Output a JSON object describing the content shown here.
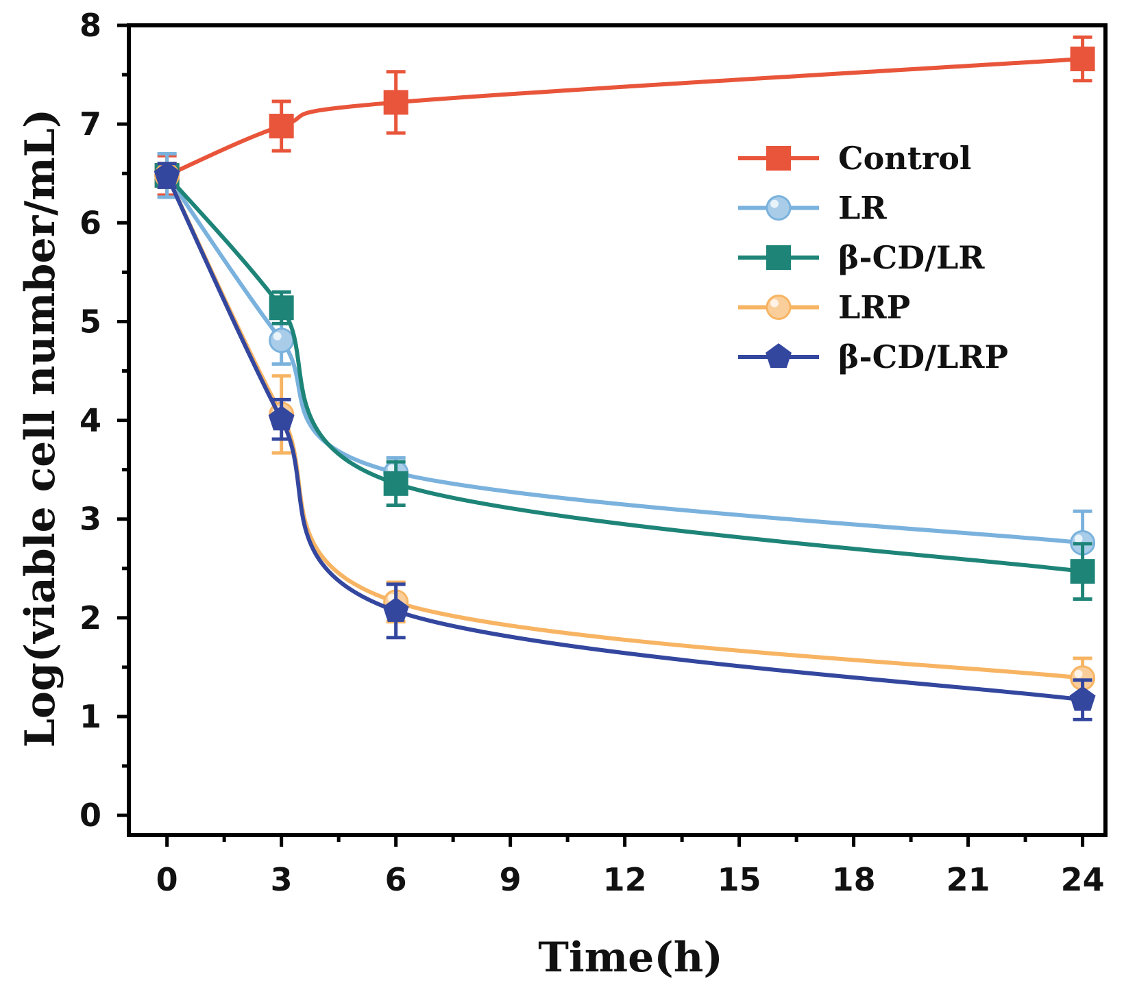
{
  "chart_data": {
    "type": "line",
    "title": "",
    "xlabel": "Time(h)",
    "ylabel": "Log(viable cell number/mL)",
    "x": [
      0,
      3,
      6,
      24
    ],
    "xlim": [
      -1,
      24.6
    ],
    "ylim": [
      -0.2,
      8
    ],
    "xticks": [
      0,
      3,
      6,
      9,
      12,
      15,
      18,
      21,
      24
    ],
    "yticks": [
      0,
      1,
      2,
      3,
      4,
      5,
      6,
      7,
      8
    ],
    "xtick_labels": [
      "0",
      "3",
      "6",
      "9",
      "12",
      "15",
      "18",
      "21",
      "24"
    ],
    "ytick_labels": [
      "0",
      "1",
      "2",
      "3",
      "4",
      "5",
      "6",
      "7",
      "8"
    ],
    "legend_position": "upper-right",
    "series": [
      {
        "name": "Control",
        "color": "#e8553a",
        "marker": "square",
        "values": [
          6.48,
          6.98,
          7.22,
          7.66
        ],
        "errors": [
          0.2,
          0.25,
          0.31,
          0.22
        ]
      },
      {
        "name": "LR",
        "color": "#7ab2dd",
        "marker": "circle",
        "values": [
          6.48,
          4.81,
          3.47,
          2.76
        ],
        "errors": [
          0.22,
          0.24,
          0.15,
          0.32
        ]
      },
      {
        "name": "β-CD/LR",
        "color": "#1e8478",
        "marker": "square",
        "values": [
          6.48,
          5.14,
          3.36,
          2.47
        ],
        "errors": [
          0.12,
          0.16,
          0.22,
          0.28
        ]
      },
      {
        "name": "LRP",
        "color": "#f7b463",
        "marker": "circle",
        "values": [
          6.48,
          4.06,
          2.16,
          1.39
        ],
        "errors": [
          0.12,
          0.39,
          0.2,
          0.2
        ]
      },
      {
        "name": "β-CD/LRP",
        "color": "#34479f",
        "marker": "pentagon",
        "values": [
          6.48,
          4.01,
          2.07,
          1.17
        ],
        "errors": [
          0.12,
          0.2,
          0.27,
          0.2
        ]
      }
    ]
  }
}
